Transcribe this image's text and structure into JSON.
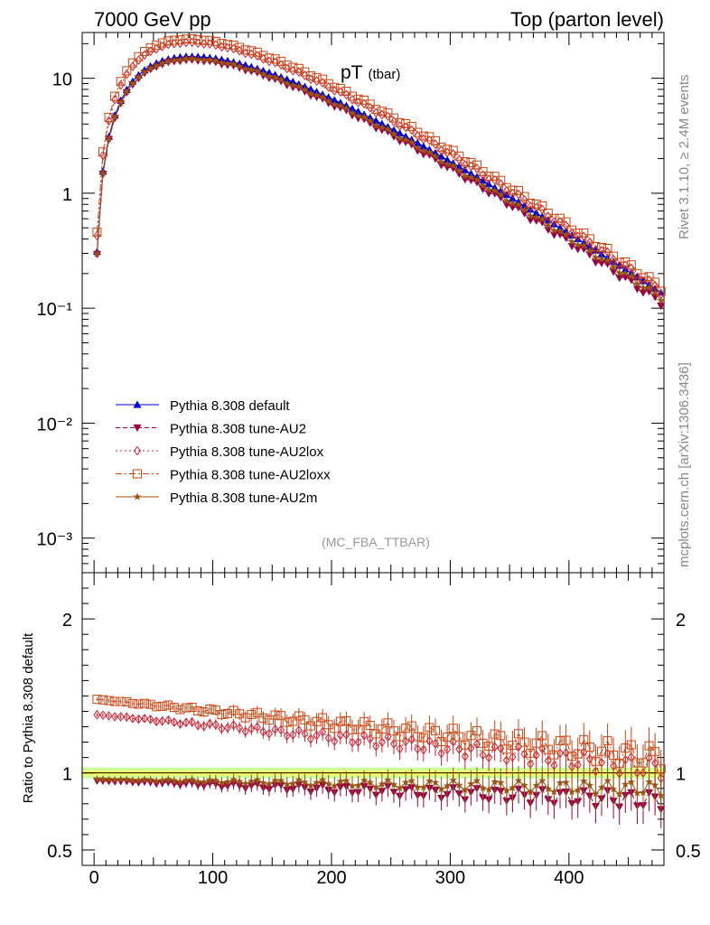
{
  "header": {
    "left": "7000 GeV pp",
    "right": "Top (parton level)"
  },
  "side": {
    "rivet": "Rivet 3.1.10, ≥ 2.4M events",
    "mcplots": "mcplots.cern.ch [arXiv:1306.3436]"
  },
  "colors": {
    "default": "#0000cc",
    "au2": "#990044",
    "au2lox": "#cc2233",
    "au2loxx": "#cc4411",
    "au2m": "#995511",
    "band_outer": "#ccff99",
    "band_inner": "#ffff66"
  },
  "chart_data": [
    {
      "type": "line",
      "title": "pT",
      "title_sub": "(tbar)",
      "analysis": "(MC_FBA_TTBAR)",
      "yscale": "log",
      "ylim": [
        0.0005,
        25
      ],
      "xlim": [
        -10,
        480
      ],
      "ytick_labels": {
        "1e-3": "10⁻³",
        "1e-2": "10⁻²",
        "1e-1": "10⁻¹",
        "1": "1",
        "10": "10"
      },
      "x": [
        2.5,
        7.5,
        12.5,
        17.5,
        22.5,
        27.5,
        32.5,
        37.5,
        42.5,
        47.5,
        52.5,
        57.5,
        62.5,
        67.5,
        72.5,
        77.5,
        82.5,
        87.5,
        92.5,
        97.5,
        102.5,
        107.5,
        112.5,
        117.5,
        122.5,
        127.5,
        132.5,
        137.5,
        142.5,
        147.5,
        152.5,
        157.5,
        162.5,
        167.5,
        172.5,
        177.5,
        182.5,
        187.5,
        192.5,
        197.5,
        202.5,
        207.5,
        212.5,
        217.5,
        222.5,
        227.5,
        232.5,
        237.5,
        242.5,
        247.5,
        252.5,
        257.5,
        262.5,
        267.5,
        272.5,
        277.5,
        282.5,
        287.5,
        292.5,
        297.5,
        302.5,
        307.5,
        312.5,
        317.5,
        322.5,
        327.5,
        332.5,
        337.5,
        342.5,
        347.5,
        352.5,
        357.5,
        362.5,
        367.5,
        372.5,
        377.5,
        382.5,
        387.5,
        392.5,
        397.5,
        402.5,
        407.5,
        412.5,
        417.5,
        422.5,
        427.5,
        432.5,
        437.5,
        442.5,
        447.5,
        452.5,
        457.5,
        462.5,
        467.5,
        472.5,
        477.5
      ],
      "legend": [
        "Pythia 8.308 default",
        "Pythia 8.308 tune-AU2",
        "Pythia 8.308 tune-AU2lox",
        "Pythia 8.308 tune-AU2loxx",
        "Pythia 8.308 tune-AU2m"
      ]
    },
    {
      "type": "line",
      "ylabel": "Ratio to Pythia 8.308 default",
      "ylim": [
        0.4,
        2.3
      ],
      "xlim": [
        -10,
        480
      ],
      "yticks": [
        0.5,
        1,
        2
      ],
      "ytick_labels": [
        "0.5",
        "1",
        "2"
      ],
      "xticks": [
        0,
        100,
        200,
        300,
        400
      ],
      "xtick_labels": [
        "0",
        "100",
        "200",
        "300",
        "400"
      ]
    }
  ]
}
